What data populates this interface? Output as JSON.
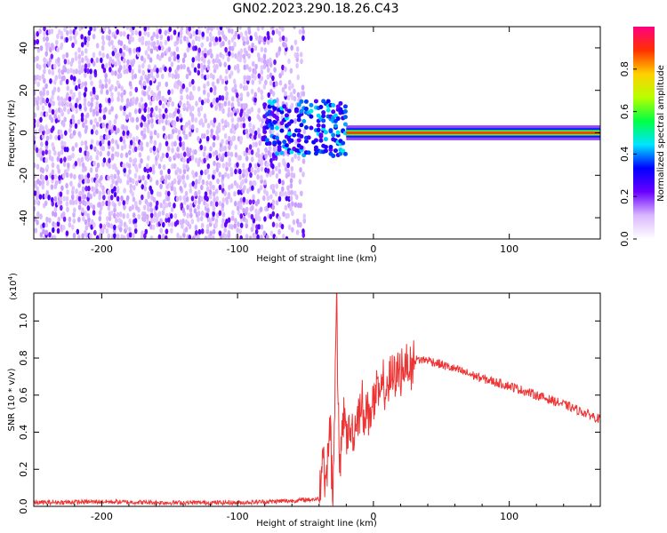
{
  "title": "GN02.2023.290.18.26.C43",
  "chart_data": [
    {
      "type": "heatmap",
      "xlabel": "Height of straight line (km)",
      "ylabel": "Frequency (Hz)",
      "xlim": [
        -250,
        167
      ],
      "ylim": [
        -50,
        50
      ],
      "x_ticks": [
        -200,
        -100,
        0,
        100
      ],
      "y_ticks": [
        -40,
        -20,
        0,
        20,
        40
      ],
      "colorbar": {
        "label": "Normalized spectral amplitude",
        "range": [
          0.0,
          1.0
        ],
        "ticks": [
          0.0,
          0.2,
          0.4,
          0.6,
          0.8
        ],
        "colors": [
          "#ffffff",
          "#d9b8ff",
          "#6a00ff",
          "#0000ff",
          "#00e5ff",
          "#00ff44",
          "#b8ff00",
          "#ffd000",
          "#ff3000",
          "#ff0080"
        ]
      },
      "description_regions": [
        {
          "x_range": [
            -250,
            -50
          ],
          "freq_range": [
            -50,
            50
          ],
          "amplitude": 0.1,
          "kind": "noise"
        },
        {
          "x_range": [
            -80,
            -20
          ],
          "freq_range": [
            -10,
            15
          ],
          "amplitude": 0.35,
          "kind": "transition"
        },
        {
          "x_range": [
            -20,
            167
          ],
          "freq_range": [
            -1,
            1
          ],
          "amplitude": 0.9,
          "kind": "carrier"
        }
      ]
    },
    {
      "type": "line",
      "xlabel": "Height of straight line (km)",
      "ylabel": "SNR (10 * v/v)",
      "y_scale_label": "(x10",
      "y_scale_exp": "4",
      "xlim": [
        -250,
        167
      ],
      "ylim": [
        0,
        1.15
      ],
      "x_ticks": [
        -200,
        -100,
        0,
        100
      ],
      "y_ticks": [
        0.0,
        0.2,
        0.4,
        0.6,
        0.8,
        1.0
      ],
      "color": "#ee3333",
      "series": [
        {
          "x": [
            -250,
            -200,
            -150,
            -100,
            -60,
            -40,
            -37,
            -35,
            -32,
            -30,
            -28,
            -27,
            -25,
            -22,
            -20,
            -15,
            -10,
            -5,
            0,
            10,
            20,
            30,
            40,
            60,
            80,
            100,
            120,
            140,
            167
          ],
          "y": [
            0.02,
            0.025,
            0.02,
            0.02,
            0.03,
            0.04,
            0.3,
            0.1,
            0.45,
            0.05,
            0.7,
            1.15,
            0.1,
            0.55,
            0.4,
            0.4,
            0.55,
            0.5,
            0.56,
            0.65,
            0.74,
            0.79,
            0.79,
            0.74,
            0.69,
            0.65,
            0.6,
            0.55,
            0.47
          ]
        }
      ]
    }
  ]
}
